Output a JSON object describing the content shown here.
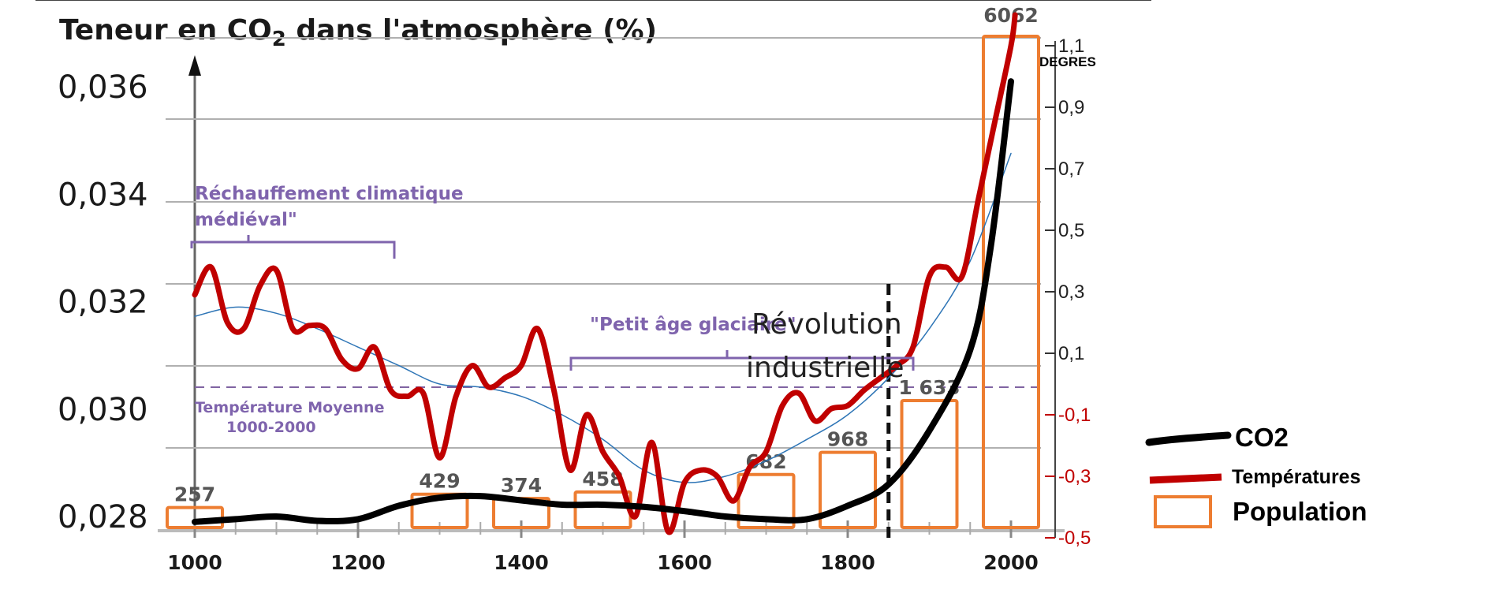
{
  "chart_data": {
    "type": "line",
    "title_prefix": "Teneur en CO",
    "title_subscript": "2",
    "title_suffix": " dans l'atmosphère (%)",
    "x_ticks": [
      "1000",
      "1200",
      "1400",
      "1600",
      "1800",
      "2000"
    ],
    "xlim": [
      1000,
      2000
    ],
    "left_axis": {
      "ticks": [
        "0,036",
        "0,034",
        "0,032",
        "0,030",
        "0,028"
      ],
      "ylim": [
        0.0274,
        0.0362
      ]
    },
    "right_axis": {
      "unit": "DEGRES",
      "ticks": [
        "1,1",
        "0,9",
        "0,7",
        "0,5",
        "0,3",
        "0,1",
        "-0,1",
        "-0,3",
        "-0,5"
      ],
      "ylim": [
        -0.5,
        1.1
      ]
    },
    "annotations": {
      "warm_period_line1": "Réchauffement climatique",
      "warm_period_line2": "médiéval\"",
      "little_ice_age": "\"Petit âge glaciaire\"",
      "revolution_line1": "Révolution",
      "revolution_line2": "industrielle",
      "mean_temp_line1": "Température Moyenne",
      "mean_temp_line2": "1000-2000"
    },
    "legend": [
      {
        "label": "CO2",
        "color": "#000000"
      },
      {
        "label": "Températures",
        "color": "#c00000"
      },
      {
        "label": "Population",
        "color": "#ed7d31"
      }
    ],
    "series": [
      {
        "name": "CO2",
        "color": "#000000",
        "axis": "left",
        "x": [
          1000,
          1050,
          1100,
          1150,
          1200,
          1250,
          1300,
          1350,
          1400,
          1450,
          1500,
          1550,
          1600,
          1650,
          1700,
          1750,
          1800,
          1850,
          1900,
          1950,
          1975,
          2000
        ],
        "values": [
          0.0279,
          0.02795,
          0.028,
          0.02792,
          0.02795,
          0.0282,
          0.02835,
          0.02838,
          0.0283,
          0.02822,
          0.02822,
          0.02818,
          0.0281,
          0.028,
          0.02795,
          0.02795,
          0.0282,
          0.0286,
          0.0296,
          0.0311,
          0.033,
          0.0361
        ]
      },
      {
        "name": "Températures",
        "color": "#c00000",
        "axis": "right",
        "x": [
          1000,
          1020,
          1040,
          1060,
          1080,
          1100,
          1120,
          1140,
          1160,
          1180,
          1200,
          1220,
          1240,
          1260,
          1280,
          1300,
          1320,
          1340,
          1360,
          1380,
          1400,
          1420,
          1440,
          1460,
          1480,
          1500,
          1520,
          1540,
          1560,
          1580,
          1600,
          1620,
          1640,
          1660,
          1680,
          1700,
          1720,
          1740,
          1760,
          1780,
          1800,
          1820,
          1840,
          1860,
          1880,
          1900,
          1920,
          1940,
          1960,
          1980,
          2000,
          2005
        ],
        "values": [
          0.29,
          0.38,
          0.2,
          0.18,
          0.32,
          0.37,
          0.18,
          0.19,
          0.18,
          0.08,
          0.05,
          0.12,
          -0.02,
          -0.04,
          -0.03,
          -0.24,
          -0.04,
          0.06,
          -0.01,
          0.02,
          0.06,
          0.18,
          -0.02,
          -0.28,
          -0.1,
          -0.22,
          -0.3,
          -0.43,
          -0.19,
          -0.48,
          -0.32,
          -0.28,
          -0.3,
          -0.38,
          -0.27,
          -0.22,
          -0.07,
          -0.03,
          -0.12,
          -0.08,
          -0.07,
          -0.02,
          0.02,
          0.06,
          0.12,
          0.35,
          0.38,
          0.35,
          0.6,
          0.85,
          1.1,
          1.2
        ]
      },
      {
        "name": "Tendance",
        "color": "#2e75b6",
        "axis": "right",
        "x": [
          1000,
          1050,
          1100,
          1150,
          1200,
          1250,
          1300,
          1350,
          1400,
          1450,
          1500,
          1550,
          1600,
          1650,
          1700,
          1750,
          1800,
          1850,
          1900,
          1950,
          2000
        ],
        "values": [
          0.22,
          0.25,
          0.23,
          0.18,
          0.12,
          0.06,
          0.0,
          -0.01,
          -0.04,
          -0.1,
          -0.18,
          -0.28,
          -0.32,
          -0.3,
          -0.25,
          -0.18,
          -0.1,
          0.02,
          0.18,
          0.4,
          0.75
        ]
      }
    ],
    "population": {
      "name": "Population",
      "color": "#ed7d31",
      "bars": [
        {
          "label": "257",
          "x": 1000,
          "value": 257
        },
        {
          "label": "429",
          "x": 1300,
          "value": 429
        },
        {
          "label": "374",
          "x": 1400,
          "value": 374
        },
        {
          "label": "458",
          "x": 1500,
          "value": 458
        },
        {
          "label": "682",
          "x": 1700,
          "value": 682
        },
        {
          "label": "968",
          "x": 1800,
          "value": 968
        },
        {
          "label": "1 633",
          "x": 1900,
          "value": 1633
        },
        {
          "label": "6062",
          "x": 2000,
          "value": 6062
        }
      ]
    },
    "industrial_revolution_year": 1850
  }
}
